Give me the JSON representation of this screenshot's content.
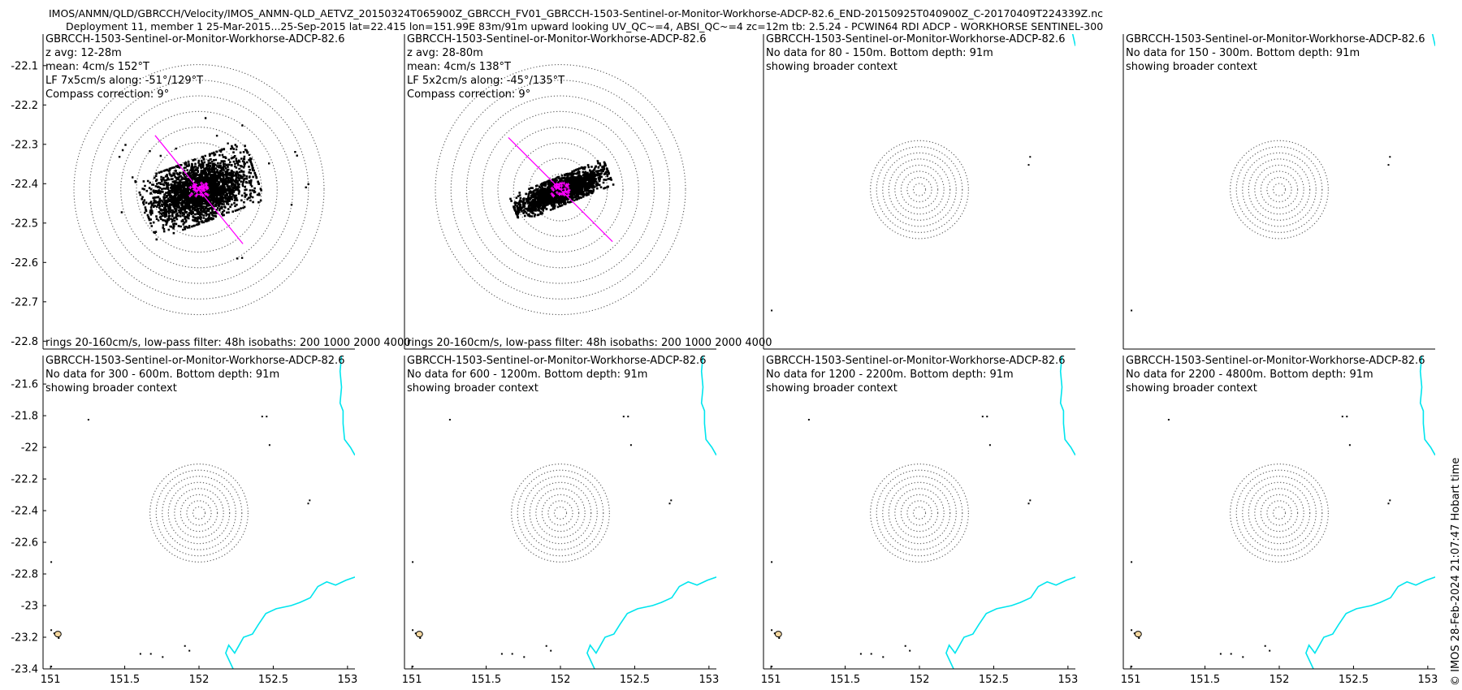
{
  "header": {
    "line1": "IMOS/ANMN/QLD/GBRCCH/Velocity/IMOS_ANMN-QLD_AETVZ_20150324T065900Z_GBRCCH_FV01_GBRCCH-1503-Sentinel-or-Monitor-Workhorse-ADCP-82.6_END-20150925T040900Z_C-20170409T224339Z.nc",
    "line2": "Deployment 11, member 1 25-Mar-2015...25-Sep-2015 lat=22.415 lon=151.99E 83m/91m upward looking UV_QC~=4, ABSI_QC~=4 zc=12m tb: 2.5.24 - PCWIN64 RDI ADCP - WORKHORSE SENTINEL-300"
  },
  "credit": "© IMOS 28-Feb-2024 21:07:47 Hobart time",
  "colors": {
    "scatter": "#000000",
    "axis_line": "#ff00ff",
    "coast": "#00e5ee",
    "rings": "#555555",
    "shoal": "#f5d8a0"
  },
  "chart_data": [
    {
      "type": "scatter",
      "row": 0,
      "col": 0,
      "title": "GBRCCH-1503-Sentinel-or-Monitor-Workhorse-ADCP-82.6",
      "lines": [
        "z avg: 12-28m",
        "mean: 4cm/s 152°T",
        "LF 7x5cm/s along: -51°/129°T",
        "Compass correction: 9°"
      ],
      "footer": "rings 20-160cm/s, low-pass filter: 48h isobaths: 200 1000  2000 4000",
      "xlim": [
        150.95,
        153.05
      ],
      "ylim": [
        -22.82,
        -22.02
      ],
      "yticks": [
        -22.1,
        -22.2,
        -22.3,
        -22.4,
        -22.5,
        -22.6,
        -22.7,
        -22.8
      ],
      "xticks": [],
      "center": [
        152.0,
        -22.415
      ],
      "rings": 8,
      "ring_step_cm": 20,
      "cm_per_deg": 190,
      "cloud": {
        "n": 2600,
        "sx_cm": 32,
        "sy_cm": 18,
        "angle_deg": -20,
        "outliers": 25
      },
      "major_axis_deg": -51,
      "axis_half_length": 0.9
    },
    {
      "type": "scatter",
      "row": 0,
      "col": 1,
      "title": "GBRCCH-1503-Sentinel-or-Monitor-Workhorse-ADCP-82.6",
      "lines": [
        "z avg: 28-80m",
        "mean: 4cm/s 138°T",
        "LF 5x2cm/s along: -45°/135°T",
        "Compass correction: 9°"
      ],
      "footer": "rings 20-160cm/s, low-pass filter: 48h isobaths: 200 1000  2000 4000",
      "xlim": [
        150.95,
        153.05
      ],
      "ylim": [
        -22.82,
        -22.02
      ],
      "yticks": [],
      "xticks": [],
      "center": [
        152.0,
        -22.415
      ],
      "rings": 8,
      "ring_step_cm": 20,
      "cm_per_deg": 190,
      "cloud": {
        "n": 2200,
        "sx_cm": 28,
        "sy_cm": 8,
        "angle_deg": -22,
        "outliers": 0
      },
      "major_axis_deg": -45,
      "axis_half_length": 0.95
    },
    {
      "type": "map",
      "row": 0,
      "col": 2,
      "title": "GBRCCH-1503-Sentinel-or-Monitor-Workhorse-ADCP-82.6",
      "lines": [
        "No data for 80 - 150m. Bottom depth: 91m",
        "showing broader context"
      ],
      "xlim": [
        150.95,
        153.05
      ],
      "ylim": [
        -22.82,
        -22.02
      ],
      "yticks": [],
      "xticks": [],
      "center": [
        152.0,
        -22.415
      ],
      "rings": 8,
      "ring_radius": 0.33
    },
    {
      "type": "map",
      "row": 0,
      "col": 3,
      "title": "GBRCCH-1503-Sentinel-or-Monitor-Workhorse-ADCP-82.6",
      "lines": [
        "No data for 150 - 300m. Bottom depth: 91m",
        "showing broader context"
      ],
      "xlim": [
        150.95,
        153.05
      ],
      "ylim": [
        -22.82,
        -22.02
      ],
      "yticks": [],
      "xticks": [],
      "center": [
        152.0,
        -22.415
      ],
      "rings": 8,
      "ring_radius": 0.33
    },
    {
      "type": "map",
      "row": 1,
      "col": 0,
      "title": "GBRCCH-1503-Sentinel-or-Monitor-Workhorse-ADCP-82.6",
      "lines": [
        "No data for 300 - 600m. Bottom depth: 91m",
        "showing broader context"
      ],
      "xlim": [
        150.95,
        153.05
      ],
      "ylim": [
        -23.4,
        -21.42
      ],
      "yticks": [
        -21.6,
        -21.8,
        -22,
        -22.2,
        -22.4,
        -22.6,
        -22.8,
        -23,
        -23.2,
        -23.4
      ],
      "xticks": [
        151,
        151.5,
        152,
        152.5,
        153
      ],
      "center": [
        152.0,
        -22.415
      ],
      "rings": 8,
      "ring_radius": 0.33
    },
    {
      "type": "map",
      "row": 1,
      "col": 1,
      "title": "GBRCCH-1503-Sentinel-or-Monitor-Workhorse-ADCP-82.6",
      "lines": [
        "No data for 600 - 1200m. Bottom depth: 91m",
        "showing broader context"
      ],
      "xlim": [
        150.95,
        153.05
      ],
      "ylim": [
        -23.4,
        -21.42
      ],
      "yticks": [],
      "xticks": [
        151,
        151.5,
        152,
        152.5,
        153
      ],
      "center": [
        152.0,
        -22.415
      ],
      "rings": 8,
      "ring_radius": 0.33
    },
    {
      "type": "map",
      "row": 1,
      "col": 2,
      "title": "GBRCCH-1503-Sentinel-or-Monitor-Workhorse-ADCP-82.6",
      "lines": [
        "No data for 1200 - 2200m. Bottom depth: 91m",
        "showing broader context"
      ],
      "xlim": [
        150.95,
        153.05
      ],
      "ylim": [
        -23.4,
        -21.42
      ],
      "yticks": [],
      "xticks": [
        151,
        151.5,
        152,
        152.5,
        153
      ],
      "center": [
        152.0,
        -22.415
      ],
      "rings": 8,
      "ring_radius": 0.33
    },
    {
      "type": "map",
      "row": 1,
      "col": 3,
      "title": "GBRCCH-1503-Sentinel-or-Monitor-Workhorse-ADCP-82.6",
      "lines": [
        "No data for 2200 - 4800m. Bottom depth: 91m",
        "showing broader context"
      ],
      "xlim": [
        150.95,
        153.05
      ],
      "ylim": [
        -23.4,
        -21.42
      ],
      "yticks": [],
      "xticks": [
        151,
        151.5,
        152,
        152.5,
        153
      ],
      "center": [
        152.0,
        -22.415
      ],
      "rings": 8,
      "ring_radius": 0.33
    }
  ],
  "map_context": {
    "coastline": [
      [
        153.05,
        -22.05
      ],
      [
        153.02,
        -22.0
      ],
      [
        152.98,
        -21.95
      ],
      [
        152.97,
        -21.85
      ],
      [
        152.97,
        -21.77
      ],
      [
        152.95,
        -21.72
      ],
      [
        152.96,
        -21.62
      ],
      [
        152.95,
        -21.52
      ],
      [
        152.96,
        -21.42
      ]
    ],
    "coastline2": [
      [
        153.05,
        -22.82
      ],
      [
        152.99,
        -22.84
      ],
      [
        152.92,
        -22.87
      ],
      [
        152.86,
        -22.85
      ],
      [
        152.8,
        -22.88
      ],
      [
        152.75,
        -22.95
      ],
      [
        152.68,
        -22.98
      ],
      [
        152.62,
        -23.0
      ],
      [
        152.52,
        -23.02
      ],
      [
        152.45,
        -23.05
      ],
      [
        152.4,
        -23.12
      ],
      [
        152.36,
        -23.18
      ],
      [
        152.3,
        -23.2
      ],
      [
        152.27,
        -23.25
      ],
      [
        152.24,
        -23.3
      ],
      [
        152.2,
        -23.25
      ],
      [
        152.18,
        -23.3
      ],
      [
        152.22,
        -23.38
      ],
      [
        152.24,
        -23.42
      ]
    ],
    "islands": [
      [
        151.25,
        -21.82
      ],
      [
        152.42,
        -21.8
      ],
      [
        152.45,
        -21.8
      ],
      [
        152.47,
        -21.98
      ],
      [
        152.74,
        -22.33
      ],
      [
        152.73,
        -22.35
      ],
      [
        151.0,
        -22.72
      ],
      [
        151.0,
        -23.15
      ],
      [
        151.02,
        -23.17
      ],
      [
        151.05,
        -23.2
      ],
      [
        151.6,
        -23.3
      ],
      [
        151.67,
        -23.3
      ],
      [
        151.75,
        -23.32
      ],
      [
        151.9,
        -23.25
      ],
      [
        151.93,
        -23.28
      ],
      [
        151.2,
        -23.4
      ],
      [
        151.22,
        -23.4
      ],
      [
        151.0,
        -23.38
      ]
    ],
    "shoal": [
      151.05,
      -23.18
    ]
  }
}
